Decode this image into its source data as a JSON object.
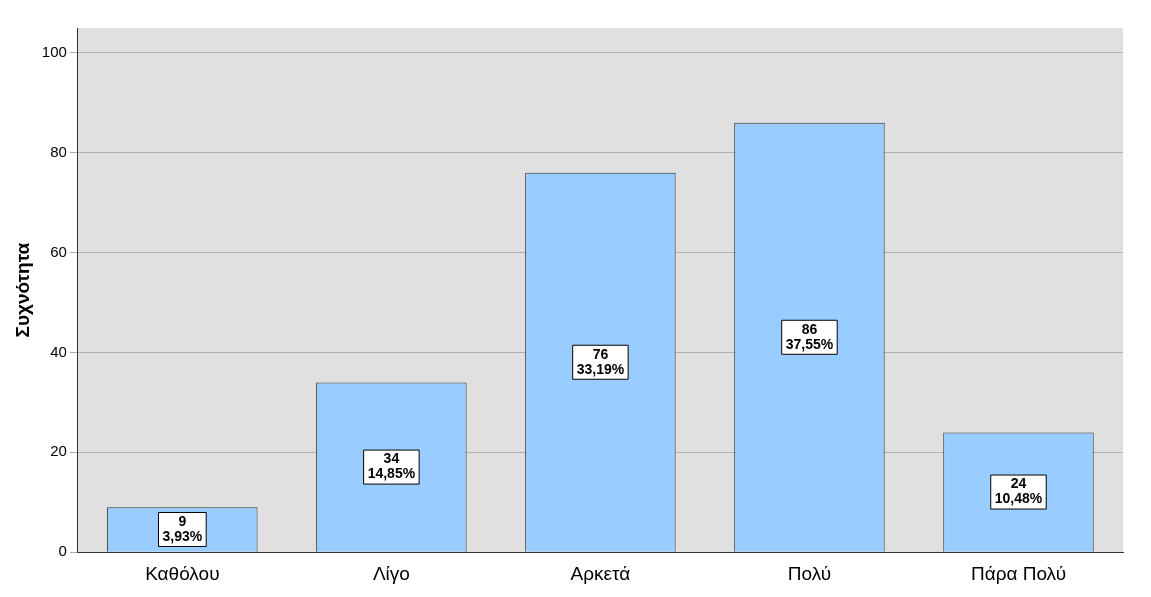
{
  "chart_data": {
    "type": "bar",
    "ylabel": "Συχνότητα",
    "categories": [
      "Καθόλου",
      "Λίγο",
      "Αρκετά",
      "Πολύ",
      "Πάρα Πολύ"
    ],
    "values": [
      9,
      34,
      76,
      86,
      24
    ],
    "color": "#99ccff",
    "value_labels": [
      "9\n3,93%",
      "34\n14,85%",
      "76\n33,19%",
      "86\n37,55%",
      "24\n10,48%"
    ],
    "ylim": [
      0,
      105
    ],
    "yticks": [
      0,
      20,
      40,
      60,
      80,
      100
    ],
    "grid": "y"
  }
}
